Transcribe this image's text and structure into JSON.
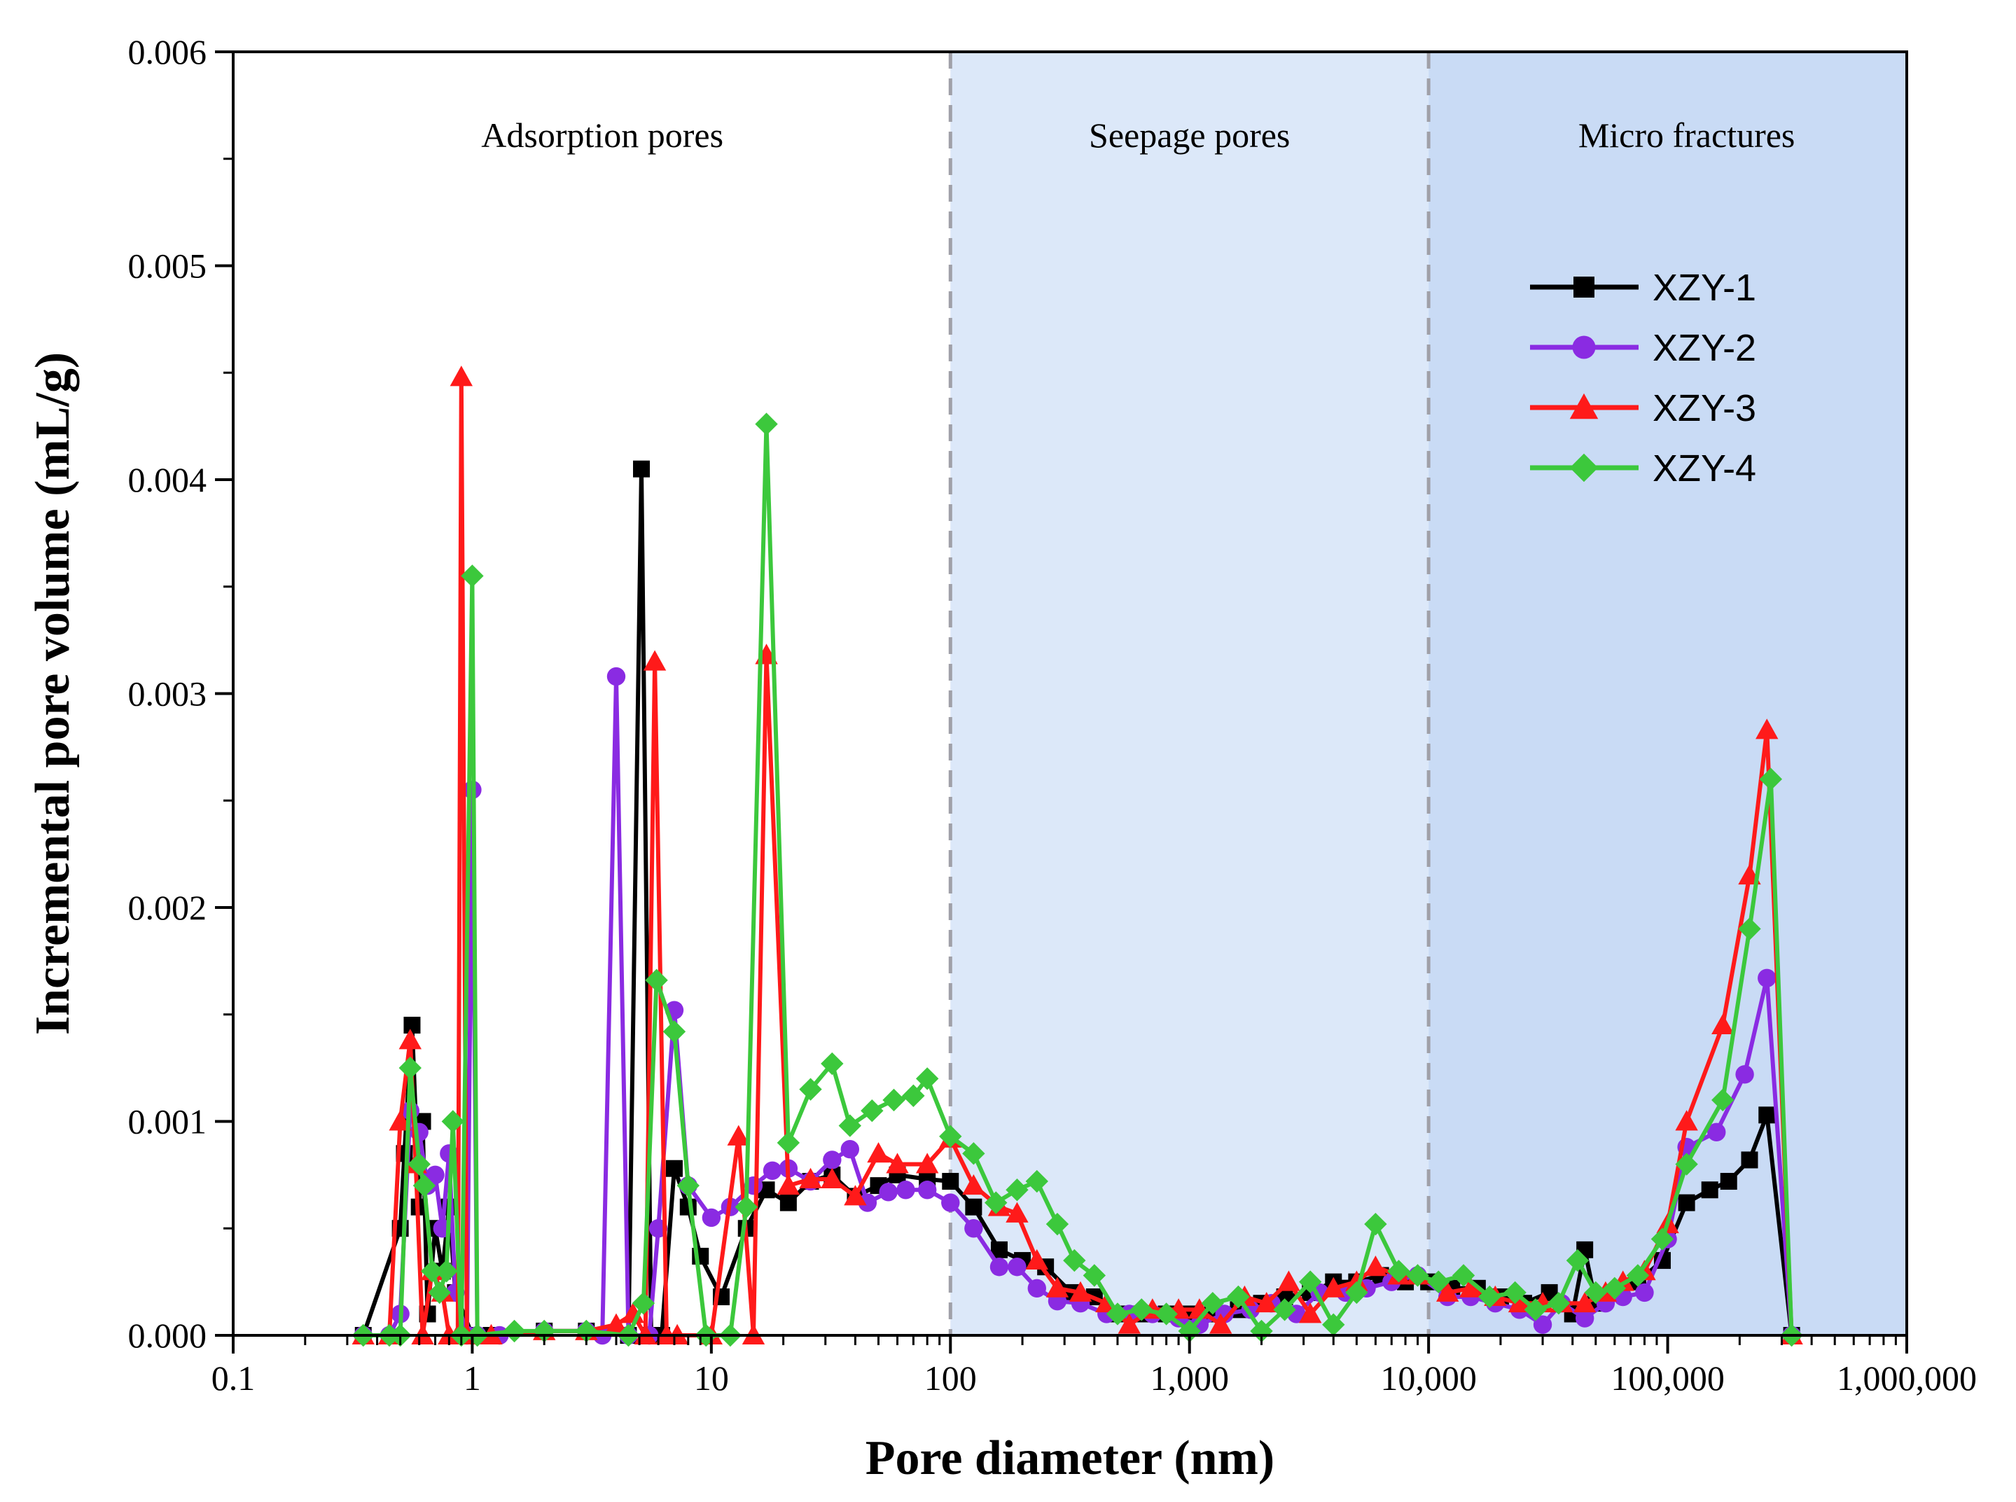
{
  "chart_data": {
    "type": "line",
    "xscale": "log",
    "xlim": [
      0.1,
      1000000
    ],
    "ylim": [
      0,
      0.006
    ],
    "xlabel": "Pore diameter (nm)",
    "ylabel": "Incremental pore volume (mL/g)",
    "x_ticks": [
      {
        "value": 0.1,
        "label": "0.1"
      },
      {
        "value": 1,
        "label": "1"
      },
      {
        "value": 10,
        "label": "10"
      },
      {
        "value": 100,
        "label": "100"
      },
      {
        "value": 1000,
        "label": "1,000"
      },
      {
        "value": 10000,
        "label": "10,000"
      },
      {
        "value": 100000,
        "label": "100,000"
      },
      {
        "value": 1000000,
        "label": "1,000,000"
      }
    ],
    "y_ticks": [
      {
        "value": 0,
        "label": "0.000"
      },
      {
        "value": 0.001,
        "label": "0.001"
      },
      {
        "value": 0.002,
        "label": "0.002"
      },
      {
        "value": 0.003,
        "label": "0.003"
      },
      {
        "value": 0.004,
        "label": "0.004"
      },
      {
        "value": 0.005,
        "label": "0.005"
      },
      {
        "value": 0.006,
        "label": "0.006"
      }
    ],
    "regions": [
      {
        "label": "Adsorption pores",
        "from": 0.1,
        "to": 100,
        "color": "#ffffff",
        "label_x": 3.5
      },
      {
        "label": "Seepage pores",
        "from": 100,
        "to": 10000,
        "color": "#dce8f9",
        "label_x": 1000
      },
      {
        "label": "Micro fractures",
        "from": 10000,
        "to": 1000000,
        "color": "#c9dbf5",
        "label_x": 120000
      }
    ],
    "dividers": [
      100,
      10000
    ],
    "legend_position": "top-right",
    "series": [
      {
        "name": "XZY-1",
        "color": "#000000",
        "marker": "square",
        "points": [
          [
            0.35,
            0
          ],
          [
            0.5,
            0.0005
          ],
          [
            0.52,
            0.00085
          ],
          [
            0.56,
            0.00145
          ],
          [
            0.6,
            0.0006
          ],
          [
            0.62,
            0.001
          ],
          [
            0.65,
            0.0001
          ],
          [
            0.7,
            0.0005
          ],
          [
            0.75,
            0.0003
          ],
          [
            0.8,
            0.0006
          ],
          [
            0.85,
            0.0002
          ],
          [
            1.0,
            0.0
          ],
          [
            1.2,
            0.0
          ],
          [
            2,
            2e-05
          ],
          [
            3,
            2e-05
          ],
          [
            4.5,
            0.0
          ],
          [
            5.1,
            0.00405
          ],
          [
            5.6,
            0.0
          ],
          [
            6.2,
            0.0
          ],
          [
            7.0,
            0.00078
          ],
          [
            8.0,
            0.0006
          ],
          [
            9.0,
            0.00037
          ],
          [
            11,
            0.00018
          ],
          [
            14,
            0.0005
          ],
          [
            17,
            0.00068
          ],
          [
            21,
            0.00062
          ],
          [
            26,
            0.00072
          ],
          [
            32,
            0.00075
          ],
          [
            40,
            0.00065
          ],
          [
            50,
            0.0007
          ],
          [
            60,
            0.00075
          ],
          [
            80,
            0.00073
          ],
          [
            100,
            0.00072
          ],
          [
            125,
            0.0006
          ],
          [
            160,
            0.0004
          ],
          [
            200,
            0.00035
          ],
          [
            250,
            0.00032
          ],
          [
            320,
            0.0002
          ],
          [
            400,
            0.00018
          ],
          [
            500,
            0.0001
          ],
          [
            630,
            0.0001
          ],
          [
            800,
            0.0001
          ],
          [
            1000,
            0.0001
          ],
          [
            1250,
            0.0001
          ],
          [
            1600,
            0.00012
          ],
          [
            2000,
            0.00015
          ],
          [
            2500,
            0.00018
          ],
          [
            3200,
            0.0002
          ],
          [
            4000,
            0.00025
          ],
          [
            5000,
            0.00025
          ],
          [
            6300,
            0.00028
          ],
          [
            8000,
            0.00025
          ],
          [
            10000,
            0.00025
          ],
          [
            12500,
            0.00022
          ],
          [
            16000,
            0.00022
          ],
          [
            20000,
            0.00018
          ],
          [
            25000,
            0.00015
          ],
          [
            32000,
            0.0002
          ],
          [
            40000,
            0.0001
          ],
          [
            45000,
            0.0004
          ],
          [
            50000,
            0.00015
          ],
          [
            60000,
            0.0002
          ],
          [
            75000,
            0.00025
          ],
          [
            95000,
            0.00035
          ],
          [
            120000,
            0.00062
          ],
          [
            150000,
            0.00068
          ],
          [
            180000,
            0.00072
          ],
          [
            220000,
            0.00082
          ],
          [
            260000,
            0.00103
          ],
          [
            330000,
            0.0
          ]
        ]
      },
      {
        "name": "XZY-2",
        "color": "#8a2be2",
        "marker": "circle",
        "points": [
          [
            0.35,
            0
          ],
          [
            0.45,
            0.0
          ],
          [
            0.5,
            0.0001
          ],
          [
            0.55,
            0.00105
          ],
          [
            0.6,
            0.00095
          ],
          [
            0.65,
            0.0007
          ],
          [
            0.7,
            0.00075
          ],
          [
            0.75,
            0.0005
          ],
          [
            0.8,
            0.00085
          ],
          [
            0.85,
            0.0002
          ],
          [
            0.95,
            0.0
          ],
          [
            1.0,
            0.00255
          ],
          [
            1.05,
            0.0
          ],
          [
            1.3,
            0.0
          ],
          [
            2,
            2e-05
          ],
          [
            3,
            2e-05
          ],
          [
            3.5,
            0.0
          ],
          [
            4.0,
            0.00308
          ],
          [
            4.5,
            0.0
          ],
          [
            5.5,
            0.0
          ],
          [
            6.0,
            0.0005
          ],
          [
            7.0,
            0.00152
          ],
          [
            8.0,
            0.0007
          ],
          [
            10,
            0.00055
          ],
          [
            12,
            0.0006
          ],
          [
            15,
            0.0007
          ],
          [
            18,
            0.00077
          ],
          [
            21,
            0.00078
          ],
          [
            26,
            0.00072
          ],
          [
            32,
            0.00082
          ],
          [
            38,
            0.00087
          ],
          [
            45,
            0.00062
          ],
          [
            55,
            0.00067
          ],
          [
            65,
            0.00068
          ],
          [
            80,
            0.00068
          ],
          [
            100,
            0.00062
          ],
          [
            125,
            0.0005
          ],
          [
            160,
            0.00032
          ],
          [
            190,
            0.00032
          ],
          [
            230,
            0.00022
          ],
          [
            280,
            0.00016
          ],
          [
            350,
            0.00015
          ],
          [
            450,
            0.0001
          ],
          [
            560,
            0.0001
          ],
          [
            700,
            0.0001
          ],
          [
            900,
            8e-05
          ],
          [
            1100,
            5e-05
          ],
          [
            1400,
            0.0001
          ],
          [
            1800,
            0.00012
          ],
          [
            2200,
            0.00015
          ],
          [
            2800,
            0.0001
          ],
          [
            3500,
            0.0002
          ],
          [
            4500,
            0.0002
          ],
          [
            5500,
            0.00022
          ],
          [
            7000,
            0.00025
          ],
          [
            9000,
            0.00028
          ],
          [
            12000,
            0.00018
          ],
          [
            15000,
            0.00018
          ],
          [
            19000,
            0.00015
          ],
          [
            24000,
            0.00012
          ],
          [
            30000,
            5e-05
          ],
          [
            36000,
            0.00015
          ],
          [
            45000,
            8e-05
          ],
          [
            55000,
            0.00015
          ],
          [
            65000,
            0.00018
          ],
          [
            80000,
            0.0002
          ],
          [
            100000,
            0.00045
          ],
          [
            120000,
            0.00088
          ],
          [
            160000,
            0.00095
          ],
          [
            210000,
            0.00122
          ],
          [
            260000,
            0.00167
          ],
          [
            330000,
            0.0
          ]
        ]
      },
      {
        "name": "XZY-3",
        "color": "#ff1a1a",
        "marker": "triangle",
        "points": [
          [
            0.35,
            0
          ],
          [
            0.45,
            0.0
          ],
          [
            0.5,
            0.001
          ],
          [
            0.55,
            0.00138
          ],
          [
            0.58,
            0.0008
          ],
          [
            0.62,
            0.0
          ],
          [
            0.68,
            0.0003
          ],
          [
            0.75,
            0.0002
          ],
          [
            0.8,
            0.0
          ],
          [
            0.87,
            0.0
          ],
          [
            0.9,
            0.00448
          ],
          [
            0.95,
            0.0
          ],
          [
            1.2,
            0.0
          ],
          [
            2,
            2e-05
          ],
          [
            3,
            2e-05
          ],
          [
            4.0,
            5e-05
          ],
          [
            4.7,
            0.0001
          ],
          [
            5.3,
            0.0
          ],
          [
            5.8,
            0.00315
          ],
          [
            6.5,
            0.0
          ],
          [
            7.2,
            0.0
          ],
          [
            10,
            0.0
          ],
          [
            13,
            0.00093
          ],
          [
            15,
            0.0
          ],
          [
            17,
            0.00318
          ],
          [
            21,
            0.0007
          ],
          [
            26,
            0.00073
          ],
          [
            32,
            0.00073
          ],
          [
            40,
            0.00065
          ],
          [
            50,
            0.00085
          ],
          [
            60,
            0.0008
          ],
          [
            80,
            0.0008
          ],
          [
            100,
            0.00092
          ],
          [
            125,
            0.0007
          ],
          [
            160,
            0.0006
          ],
          [
            190,
            0.00057
          ],
          [
            230,
            0.00035
          ],
          [
            280,
            0.00022
          ],
          [
            350,
            0.0002
          ],
          [
            450,
            0.00015
          ],
          [
            560,
            5e-05
          ],
          [
            700,
            0.00012
          ],
          [
            900,
            0.00012
          ],
          [
            1100,
            0.00012
          ],
          [
            1350,
            5e-05
          ],
          [
            1700,
            0.00018
          ],
          [
            2100,
            0.00015
          ],
          [
            2600,
            0.00025
          ],
          [
            3200,
            0.0001
          ],
          [
            4000,
            0.00022
          ],
          [
            5000,
            0.00025
          ],
          [
            6000,
            0.00032
          ],
          [
            7500,
            0.00028
          ],
          [
            9000,
            0.00028
          ],
          [
            12000,
            0.0002
          ],
          [
            15000,
            0.00022
          ],
          [
            19000,
            0.00018
          ],
          [
            24000,
            0.00015
          ],
          [
            30000,
            0.00015
          ],
          [
            36000,
            0.00015
          ],
          [
            45000,
            0.00015
          ],
          [
            55000,
            0.0002
          ],
          [
            65000,
            0.00025
          ],
          [
            80000,
            0.0003
          ],
          [
            100000,
            0.00052
          ],
          [
            120000,
            0.001
          ],
          [
            170000,
            0.00145
          ],
          [
            220000,
            0.00215
          ],
          [
            260000,
            0.00283
          ],
          [
            330000,
            0.0
          ]
        ]
      },
      {
        "name": "XZY-4",
        "color": "#3cc83c",
        "marker": "diamond",
        "points": [
          [
            0.35,
            0
          ],
          [
            0.45,
            0.0
          ],
          [
            0.5,
            0.0
          ],
          [
            0.55,
            0.00125
          ],
          [
            0.6,
            0.0008
          ],
          [
            0.63,
            0.0007
          ],
          [
            0.68,
            0.0003
          ],
          [
            0.73,
            0.0002
          ],
          [
            0.78,
            0.0003
          ],
          [
            0.83,
            0.001
          ],
          [
            0.9,
            0.0
          ],
          [
            1.0,
            0.00355
          ],
          [
            1.05,
            0.0
          ],
          [
            1.5,
            2e-05
          ],
          [
            2,
            2e-05
          ],
          [
            3,
            2e-05
          ],
          [
            4.5,
            0.0
          ],
          [
            5.2,
            0.00015
          ],
          [
            5.9,
            0.00166
          ],
          [
            7.0,
            0.00142
          ],
          [
            8.0,
            0.0007
          ],
          [
            9.5,
            0.0
          ],
          [
            12,
            0.0
          ],
          [
            14,
            0.0006
          ],
          [
            17,
            0.00426
          ],
          [
            21,
            0.0009
          ],
          [
            26,
            0.00115
          ],
          [
            32,
            0.00127
          ],
          [
            38,
            0.00098
          ],
          [
            47,
            0.00105
          ],
          [
            58,
            0.0011
          ],
          [
            70,
            0.00112
          ],
          [
            80,
            0.0012
          ],
          [
            100,
            0.00093
          ],
          [
            125,
            0.00085
          ],
          [
            155,
            0.00062
          ],
          [
            190,
            0.00068
          ],
          [
            230,
            0.00072
          ],
          [
            280,
            0.00052
          ],
          [
            330,
            0.00035
          ],
          [
            400,
            0.00028
          ],
          [
            500,
            0.0001
          ],
          [
            630,
            0.00012
          ],
          [
            800,
            0.0001
          ],
          [
            1000,
            2e-05
          ],
          [
            1250,
            0.00015
          ],
          [
            1600,
            0.00018
          ],
          [
            2000,
            2e-05
          ],
          [
            2500,
            0.00012
          ],
          [
            3200,
            0.00025
          ],
          [
            4000,
            5e-05
          ],
          [
            5000,
            0.0002
          ],
          [
            6000,
            0.00052
          ],
          [
            7500,
            0.0003
          ],
          [
            9000,
            0.00028
          ],
          [
            11000,
            0.00025
          ],
          [
            14000,
            0.00028
          ],
          [
            18000,
            0.00018
          ],
          [
            23000,
            0.0002
          ],
          [
            28000,
            0.00012
          ],
          [
            35000,
            0.00015
          ],
          [
            42000,
            0.00035
          ],
          [
            50000,
            0.0002
          ],
          [
            60000,
            0.00022
          ],
          [
            75000,
            0.00028
          ],
          [
            95000,
            0.00045
          ],
          [
            120000,
            0.0008
          ],
          [
            170000,
            0.0011
          ],
          [
            220000,
            0.0019
          ],
          [
            270000,
            0.0026
          ],
          [
            330000,
            0.0
          ]
        ]
      }
    ]
  }
}
